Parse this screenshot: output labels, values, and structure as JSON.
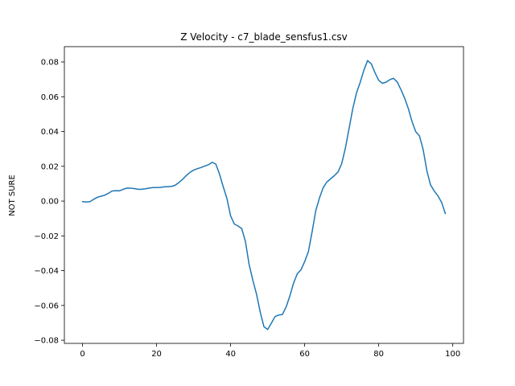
{
  "chart_data": {
    "type": "line",
    "title": "Z Velocity - c7_blade_sensfus1.csv",
    "xlabel": "",
    "ylabel": "NOT SURE",
    "xlim": [
      -4.9,
      102.9
    ],
    "ylim": [
      -0.0818,
      0.0888
    ],
    "grid": false,
    "x_ticks": [
      0,
      20,
      40,
      60,
      80,
      100
    ],
    "y_ticks": [
      -0.08,
      -0.06,
      -0.04,
      -0.02,
      0.0,
      0.02,
      0.04,
      0.06,
      0.08
    ],
    "x_tick_labels": [
      "0",
      "20",
      "40",
      "60",
      "80",
      "100"
    ],
    "y_tick_labels": [
      "−0.08",
      "−0.06",
      "−0.04",
      "−0.02",
      "0.00",
      "0.02",
      "0.04",
      "0.06",
      "0.08"
    ],
    "colors": {
      "series": "#1f77b4"
    },
    "series": [
      {
        "x": [
          0,
          1,
          2,
          3,
          4,
          5,
          6,
          7,
          8,
          9,
          10,
          11,
          12,
          13,
          14,
          15,
          16,
          17,
          18,
          19,
          20,
          21,
          22,
          23,
          24,
          25,
          26,
          27,
          28,
          29,
          30,
          31,
          32,
          33,
          34,
          35,
          36,
          37,
          38,
          39,
          40,
          41,
          42,
          43,
          44,
          45,
          46,
          47,
          48,
          49,
          50,
          51,
          52,
          53,
          54,
          55,
          56,
          57,
          58,
          59,
          60,
          61,
          62,
          63,
          64,
          65,
          66,
          67,
          68,
          69,
          70,
          71,
          72,
          73,
          74,
          75,
          76,
          77,
          78,
          79,
          80,
          81,
          82,
          83,
          84,
          85,
          86,
          87,
          88,
          89,
          90,
          91,
          92,
          93,
          94,
          95,
          96,
          97,
          98
        ],
        "y": [
          -0.0003,
          -0.0005,
          -0.0003,
          0.001,
          0.0022,
          0.0028,
          0.0034,
          0.0045,
          0.0058,
          0.006,
          0.0059,
          0.0068,
          0.0075,
          0.0074,
          0.0072,
          0.0068,
          0.0068,
          0.0071,
          0.0075,
          0.0078,
          0.0078,
          0.0079,
          0.0082,
          0.0083,
          0.0084,
          0.0091,
          0.0106,
          0.0125,
          0.0146,
          0.0165,
          0.0178,
          0.0186,
          0.0193,
          0.0201,
          0.0209,
          0.0223,
          0.0213,
          0.0155,
          0.0083,
          0.0015,
          -0.0085,
          -0.0132,
          -0.0143,
          -0.0158,
          -0.0232,
          -0.0365,
          -0.0455,
          -0.0535,
          -0.0638,
          -0.0722,
          -0.0738,
          -0.0702,
          -0.0664,
          -0.0655,
          -0.0652,
          -0.0608,
          -0.0545,
          -0.0472,
          -0.0418,
          -0.0395,
          -0.0348,
          -0.0291,
          -0.0178,
          -0.0055,
          0.0018,
          0.0077,
          0.011,
          0.0128,
          0.0146,
          0.0167,
          0.0215,
          0.0305,
          0.0418,
          0.0532,
          0.0622,
          0.0683,
          0.0753,
          0.0808,
          0.0789,
          0.0738,
          0.0694,
          0.0677,
          0.0684,
          0.0698,
          0.0706,
          0.0685,
          0.0641,
          0.0592,
          0.0532,
          0.0457,
          0.0399,
          0.0375,
          0.0297,
          0.0175,
          0.0093,
          0.0058,
          0.003,
          -0.0008,
          -0.0072
        ]
      }
    ]
  }
}
